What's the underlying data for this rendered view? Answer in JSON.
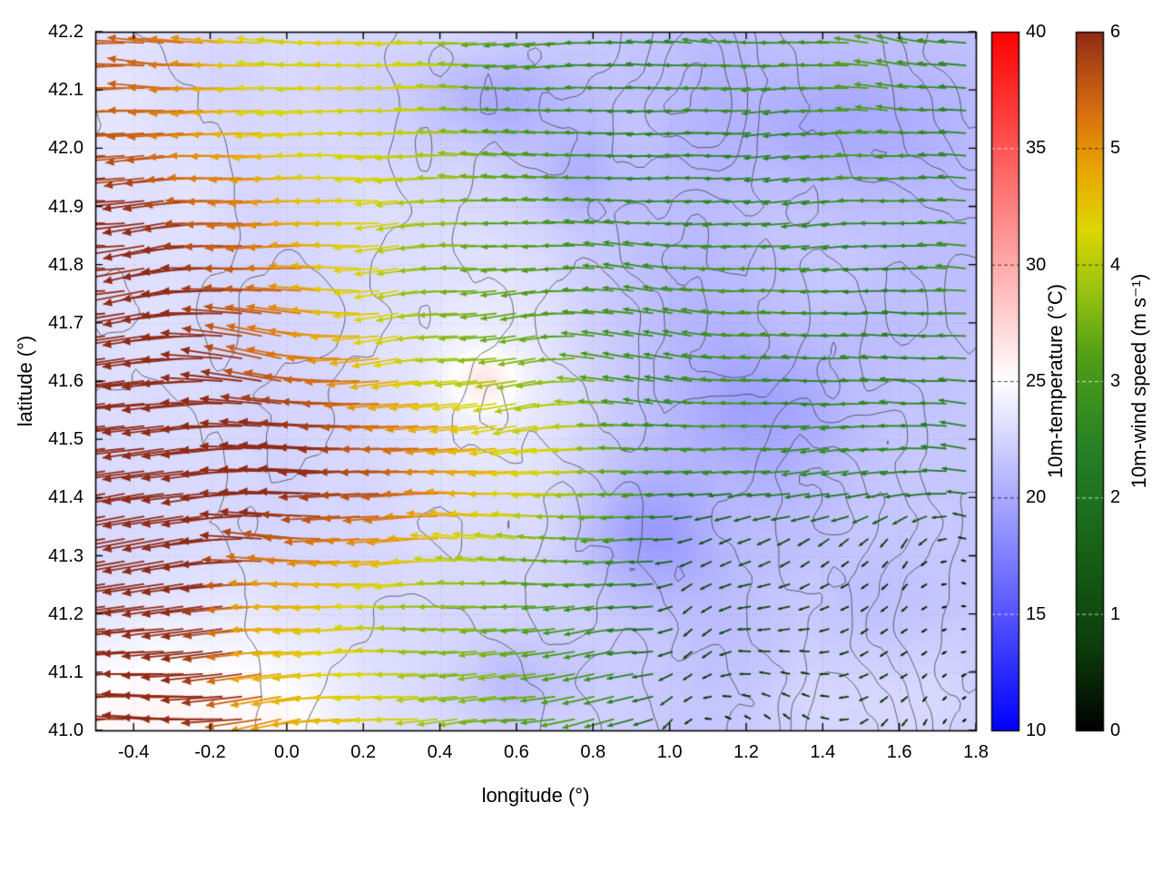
{
  "figure": {
    "xlabel": "longitude (°)",
    "ylabel": "latitude (°)",
    "temperature_colorbar_label": "10m-temperature (°C)",
    "wind_colorbar_label": "10m-wind speed (m s⁻¹)"
  },
  "chart_data": {
    "type": "heatmap",
    "subtype": "2D geographic map: shaded 10m-temperature field + terrain contour lines + 10m-wind vector arrows colored by wind speed (mostly westward flow, strong in the west, calm in the southeast)",
    "x_axis": {
      "label": "longitude (°)",
      "range": [
        -0.5,
        1.8
      ],
      "tick_labels": [
        "-0.4",
        "-0.2",
        "0.0",
        "0.2",
        "0.4",
        "0.6",
        "0.8",
        "1.0",
        "1.2",
        "1.4",
        "1.6",
        "1.8"
      ]
    },
    "y_axis": {
      "label": "latitude (°)",
      "range": [
        41.0,
        42.2
      ],
      "tick_labels": [
        "41.0",
        "41.1",
        "41.2",
        "41.3",
        "41.4",
        "41.5",
        "41.6",
        "41.7",
        "41.8",
        "41.9",
        "42.0",
        "42.1",
        "42.2"
      ]
    },
    "temperature_colorbar": {
      "label": "10m-temperature (°C)",
      "range": [
        10,
        40
      ],
      "tick_labels": [
        "10",
        "15",
        "20",
        "25",
        "30",
        "35",
        "40"
      ],
      "stops": [
        [
          10,
          "#0000ff"
        ],
        [
          25,
          "#ffffff"
        ],
        [
          40,
          "#ff0000"
        ]
      ]
    },
    "wind_colorbar": {
      "label": "10m-wind speed (m s⁻¹)",
      "range": [
        0,
        6
      ],
      "tick_labels": [
        "0",
        "1",
        "2",
        "3",
        "4",
        "5",
        "6"
      ],
      "stops": [
        [
          0,
          "#000000"
        ],
        [
          0.7,
          "#0c3c0c"
        ],
        [
          1.5,
          "#166016"
        ],
        [
          2.4,
          "#268026"
        ],
        [
          3.2,
          "#4f9e16"
        ],
        [
          3.8,
          "#9cc411"
        ],
        [
          4.3,
          "#ddd600"
        ],
        [
          4.8,
          "#e9a800"
        ],
        [
          5.3,
          "#d96f10"
        ],
        [
          5.7,
          "#b14a14"
        ],
        [
          6,
          "#8f2a16"
        ]
      ]
    },
    "temperature_field": {
      "units": "°C",
      "base": 23.0,
      "east_cooling": {
        "from": 0.45,
        "to": 1.15,
        "amount": 1.7
      },
      "noise": {
        "seed": 7,
        "scale": 2.2,
        "amplitude": 1.2
      },
      "blobs": [
        {
          "lon": -0.38,
          "lat": 41.03,
          "sx": 0.42,
          "sy": 0.17,
          "amp": 3.0
        },
        {
          "lon": 0.52,
          "lat": 41.6,
          "sx": 0.09,
          "sy": 0.05,
          "amp": 2.4
        },
        {
          "lon": 0.5,
          "lat": 41.62,
          "sx": 0.28,
          "sy": 0.25,
          "amp": 1.5
        },
        {
          "lon": 0.95,
          "lat": 41.33,
          "sx": 0.16,
          "sy": 0.1,
          "amp": -2.4
        },
        {
          "lon": 1.25,
          "lat": 41.55,
          "sx": 0.22,
          "sy": 0.14,
          "amp": -1.8
        },
        {
          "lon": 0.55,
          "lat": 42.08,
          "sx": 0.2,
          "sy": 0.08,
          "amp": -2.2
        },
        {
          "lon": 1.45,
          "lat": 42.05,
          "sx": 0.3,
          "sy": 0.12,
          "amp": -1.8
        },
        {
          "lon": 0.75,
          "lat": 41.95,
          "sx": 0.12,
          "sy": 0.08,
          "amp": -1.5
        },
        {
          "lon": 0.6,
          "lat": 41.08,
          "sx": 0.15,
          "sy": 0.08,
          "amp": -1.5
        },
        {
          "lon": 1.55,
          "lat": 41.05,
          "sx": 0.3,
          "sy": 0.1,
          "amp": 0.8
        }
      ]
    },
    "contour_field": {
      "seed": 5,
      "scale": 2.8,
      "octaves": 4,
      "west_weight": 0.62,
      "ramp_from": -0.2,
      "ramp_to": 1.0,
      "levels": [
        0.34,
        0.45,
        0.56,
        0.67,
        0.78
      ],
      "color": "rgba(50,50,50,0.8)"
    },
    "wind_field": {
      "units": "m s⁻¹",
      "grid": {
        "nx": 45,
        "ny": 31
      },
      "speed": {
        "seed": 3,
        "west_max": 5.9,
        "decline": {
          "from": -0.35,
          "to": 0.95,
          "drop": 3.4
        },
        "jet_band": {
          "lat": 41.44,
          "width": 0.16,
          "amp": 1.7,
          "east_fade_from": 0.75,
          "east_fade_to": 1.05
        },
        "calm_corner": {
          "lon_from": 0.85,
          "lon_to": 1.1,
          "lat_from": 41.48,
          "lat_to": 41.28,
          "drop": 2.1
        },
        "northwest_reduction": {
          "amount": 0.9,
          "lat_from": 41.85,
          "lat_to": 42.15,
          "lon_fade_from": -0.1,
          "lon_fade_to": 0.55
        },
        "noise_amp": 1.05
      },
      "direction": {
        "seed": 11,
        "base_deg": 180,
        "jitter_deg": 22,
        "low_speed_extra_deg": 70
      }
    }
  }
}
